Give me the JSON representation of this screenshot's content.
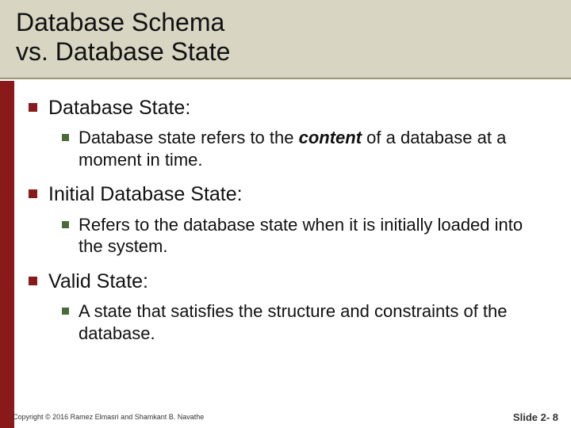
{
  "colors": {
    "title_bg": "#d8d5c2",
    "title_border": "#9a9573",
    "accent_bar": "#8a1a1a",
    "bullet_lvl1": "#8a1a1a",
    "bullet_lvl2": "#4a6a3a",
    "text": "#111111",
    "background": "#ffffff"
  },
  "typography": {
    "title_fontsize": 32,
    "lvl1_fontsize": 25,
    "lvl2_fontsize": 22,
    "footer_fontsize": 9,
    "slide_number_fontsize": 13
  },
  "title_line1": "Database Schema",
  "title_line2": "vs. Database State",
  "items": [
    {
      "heading": "Database State:",
      "sub_pre": "Database state refers to the ",
      "sub_bold": "content",
      "sub_post": " of a database at a moment in time."
    },
    {
      "heading": "Initial Database State:",
      "sub_pre": "Refers to the database state when it is initially loaded into the system.",
      "sub_bold": "",
      "sub_post": ""
    },
    {
      "heading": "Valid State:",
      "sub_pre": "A state that satisfies the structure and constraints of the database.",
      "sub_bold": "",
      "sub_post": ""
    }
  ],
  "footer_left": "Copyright © 2016 Ramez Elmasri and Shamkant B. Navathe",
  "footer_right": "Slide 2- 8"
}
